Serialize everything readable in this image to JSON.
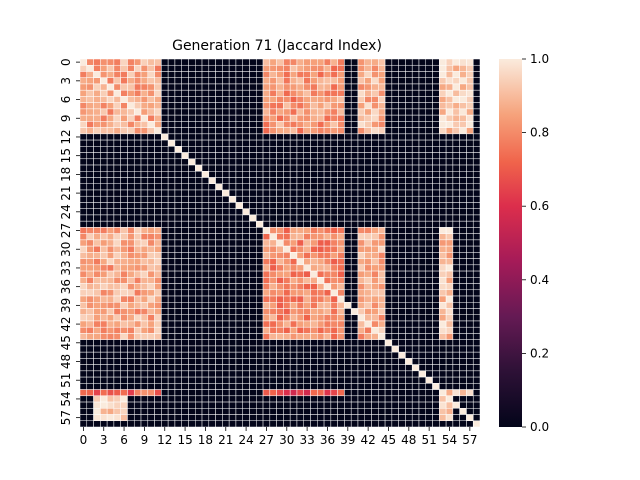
{
  "chart_data": {
    "type": "heatmap",
    "title": "Generation 71 (Jaccard Index)",
    "xlabel": "",
    "ylabel": "",
    "n_rows": 59,
    "n_cols": 59,
    "x_tick_labels": [
      "0",
      "3",
      "6",
      "9",
      "12",
      "15",
      "18",
      "21",
      "24",
      "27",
      "30",
      "33",
      "36",
      "39",
      "42",
      "45",
      "48",
      "51",
      "54",
      "57"
    ],
    "y_tick_labels": [
      "0",
      "3",
      "6",
      "9",
      "12",
      "15",
      "18",
      "21",
      "24",
      "27",
      "30",
      "33",
      "36",
      "39",
      "42",
      "45",
      "48",
      "51",
      "54",
      "57"
    ],
    "colorbar": {
      "min": 0.0,
      "max": 1.0,
      "ticks": [
        "0.0",
        "0.2",
        "0.4",
        "0.6",
        "0.8",
        "1.0"
      ]
    },
    "colormap": "rocket",
    "grid_line_color": "#ffffff",
    "cluster_blocks": [
      {
        "rows": [
          0,
          11
        ],
        "cols": [
          0,
          11
        ],
        "value": 0.86
      },
      {
        "rows": [
          0,
          11
        ],
        "cols": [
          27,
          38
        ],
        "value": 0.82
      },
      {
        "rows": [
          0,
          11
        ],
        "cols": [
          41,
          44
        ],
        "value": 0.88
      },
      {
        "rows": [
          0,
          11
        ],
        "cols": [
          53,
          57
        ],
        "value": 0.95
      },
      {
        "rows": [
          27,
          44
        ],
        "cols": [
          0,
          11
        ],
        "value": 0.86
      },
      {
        "rows": [
          27,
          44
        ],
        "cols": [
          27,
          38
        ],
        "value": 0.8
      },
      {
        "rows": [
          27,
          44
        ],
        "cols": [
          41,
          44
        ],
        "value": 0.86
      },
      {
        "rows": [
          27,
          44
        ],
        "cols": [
          53,
          54
        ],
        "value": 0.92
      },
      {
        "rows": [
          53,
          53
        ],
        "cols": [
          0,
          11
        ],
        "value": 0.72
      },
      {
        "rows": [
          53,
          53
        ],
        "cols": [
          27,
          38
        ],
        "value": 0.66
      },
      {
        "rows": [
          53,
          53
        ],
        "cols": [
          53,
          57
        ],
        "value": 0.95
      },
      {
        "rows": [
          54,
          57
        ],
        "cols": [
          2,
          6
        ],
        "value": 0.96
      },
      {
        "rows": [
          54,
          57
        ],
        "cols": [
          53,
          54
        ],
        "value": 0.92
      }
    ]
  }
}
